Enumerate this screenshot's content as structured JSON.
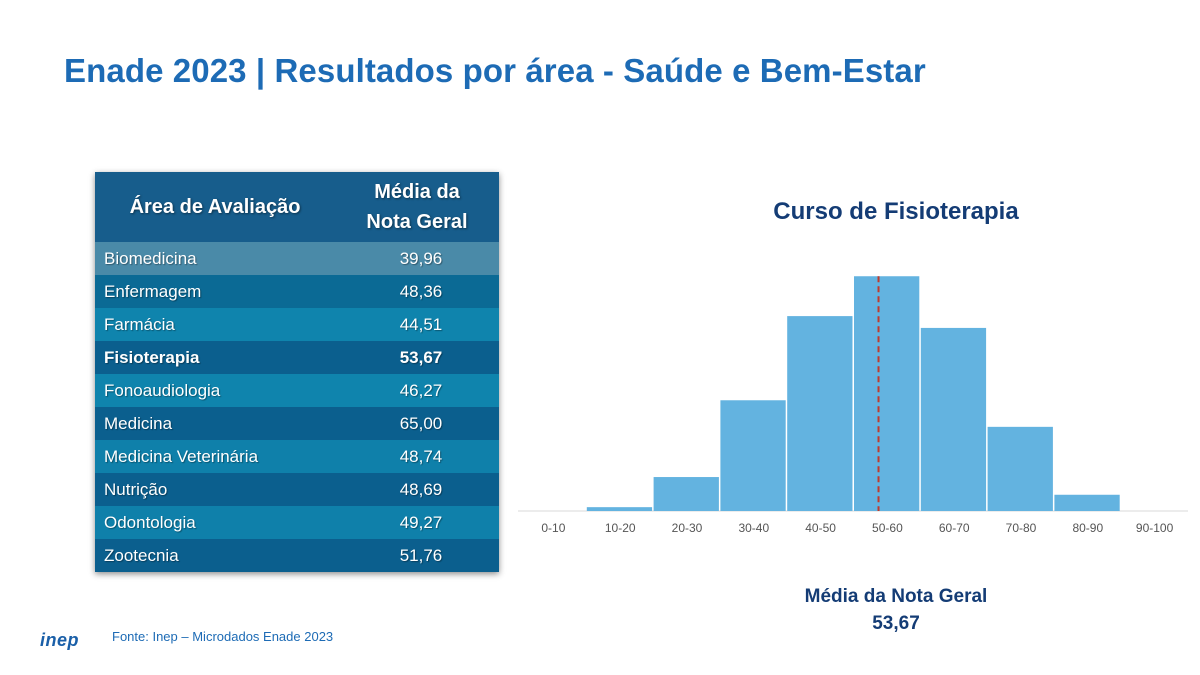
{
  "title": "Enade 2023 | Resultados por área - Saúde e Bem-Estar",
  "table": {
    "header_area": "Área de Avaliação",
    "header_media_line1": "Média da",
    "header_media_line2": "Nota Geral",
    "rows": [
      {
        "area": "Biomedicina",
        "value": "39,96",
        "color": "#4a8aa8"
      },
      {
        "area": "Enfermagem",
        "value": "48,36",
        "color": "#0b6a95"
      },
      {
        "area": "Farmácia",
        "value": "44,51",
        "color": "#0f84ad"
      },
      {
        "area": "Fisioterapia",
        "value": "53,67",
        "color": "#0b5f8e",
        "highlight": true
      },
      {
        "area": "Fonoaudiologia",
        "value": "46,27",
        "color": "#0f84ad"
      },
      {
        "area": "Medicina",
        "value": "65,00",
        "color": "#0b5f8e"
      },
      {
        "area": "Medicina Veterinária",
        "value": "48,74",
        "color": "#0f80aa"
      },
      {
        "area": "Nutrição",
        "value": "48,69",
        "color": "#0b5f8e"
      },
      {
        "area": "Odontologia",
        "value": "49,27",
        "color": "#0f80aa"
      },
      {
        "area": "Zootecnia",
        "value": "51,76",
        "color": "#0b5f8e"
      }
    ]
  },
  "chart_data": {
    "type": "bar",
    "title": "Curso de Fisioterapia",
    "categories": [
      "0-10",
      "10-20",
      "20-30",
      "30-40",
      "40-50",
      "50-60",
      "60-70",
      "70-80",
      "80-90",
      "90-100"
    ],
    "values": [
      0,
      1.3,
      11.5,
      37.5,
      66,
      79.5,
      62,
      28.5,
      5.5,
      0
    ],
    "ylim": [
      0,
      85
    ],
    "grid": false,
    "bar_color": "#63b3e0",
    "mean_line": {
      "value": 53.67,
      "color": "#c0392b",
      "style": "dashed"
    },
    "mean_label": "Média da Nota  Geral",
    "mean_value": "53,67"
  },
  "footer": {
    "logo": "inep",
    "source": "Fonte: Inep – Microdados Enade 2023"
  }
}
